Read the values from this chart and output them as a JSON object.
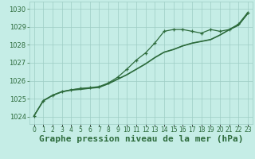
{
  "title": "Graphe pression niveau de la mer (hPa)",
  "ylim": [
    1023.6,
    1030.4
  ],
  "xlim": [
    -0.5,
    23.5
  ],
  "yticks": [
    1024,
    1025,
    1026,
    1027,
    1028,
    1029,
    1030
  ],
  "bg_color": "#c5ede6",
  "grid_color": "#9ecdc4",
  "line_color": "#2d6b3c",
  "line1": [
    1024.05,
    1024.9,
    1025.2,
    1025.4,
    1025.5,
    1025.55,
    1025.6,
    1025.65,
    1025.85,
    1026.1,
    1026.35,
    1026.65,
    1026.95,
    1027.3,
    1027.6,
    1027.75,
    1027.95,
    1028.1,
    1028.2,
    1028.3,
    1028.55,
    1028.85,
    1029.1,
    1029.75
  ],
  "line2": [
    1024.05,
    1024.88,
    1025.18,
    1025.38,
    1025.48,
    1025.52,
    1025.58,
    1025.63,
    1025.83,
    1026.08,
    1026.33,
    1026.63,
    1026.93,
    1027.28,
    1027.58,
    1027.73,
    1027.93,
    1028.08,
    1028.18,
    1028.28,
    1028.53,
    1028.83,
    1029.08,
    1029.73
  ],
  "line3": [
    1024.05,
    1024.9,
    1025.2,
    1025.4,
    1025.5,
    1025.58,
    1025.62,
    1025.68,
    1025.88,
    1026.2,
    1026.65,
    1027.15,
    1027.55,
    1028.1,
    1028.75,
    1028.85,
    1028.85,
    1028.75,
    1028.65,
    1028.85,
    1028.75,
    1028.85,
    1029.15,
    1029.8
  ],
  "title_fontsize": 8,
  "tick_fontsize": 6,
  "line_width": 0.9,
  "marker_size": 3.5
}
